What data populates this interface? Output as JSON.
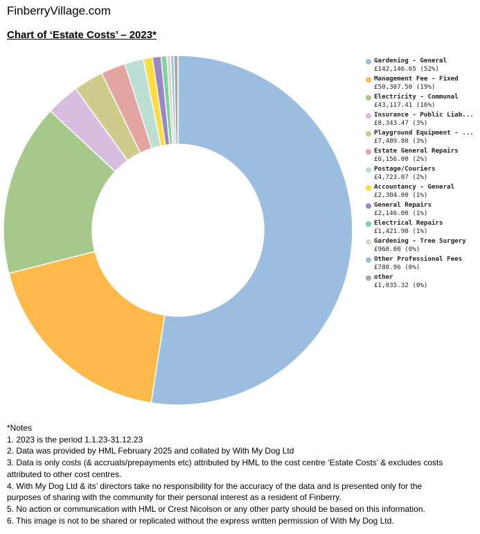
{
  "header": {
    "site": "FinberryVillage.com",
    "title": "Chart of ‘Estate Costs’ – 2023*"
  },
  "chart_data": {
    "type": "pie",
    "title": "Chart of ‘Estate Costs’ – 2023*",
    "donut": true,
    "legend_position": "right",
    "categories": [
      "Gardening - General",
      "Management Fee - Fixed",
      "Electricity - Communal",
      "Insurance - Public Liab...",
      "Playground Equipment - ...",
      "Estate General Repairs",
      "Postage/Couriers",
      "Accountancy - General",
      "General Repairs",
      "Electrical Repairs",
      "Gardening - Tree Surgery",
      "Other Professional Fees",
      "other"
    ],
    "values": [
      142146.65,
      50307.5,
      43117.41,
      8343.47,
      7489.8,
      6156.0,
      4723.07,
      2304.0,
      2146.0,
      1421.98,
      960.0,
      788.96,
      1035.32
    ],
    "value_labels": [
      "£142,146.65 (52%)",
      "£50,307.50 (19%)",
      "£43,117.41 (16%)",
      "£8,343.47 (3%)",
      "£7,489.80 (3%)",
      "£6,156.00 (2%)",
      "£4,723.07 (2%)",
      "£2,304.00 (1%)",
      "£2,146.00 (1%)",
      "£1,421.98 (1%)",
      "£960.00 (0%)",
      "£788.96 (0%)",
      "£1,035.32 (0%)"
    ],
    "colors": [
      "#9bbde0",
      "#fdb94a",
      "#a5c98a",
      "#d8bde0",
      "#cfcb8c",
      "#e3a5a0",
      "#bddfd3",
      "#fddc3e",
      "#9b86c6",
      "#7ed29b",
      "#dcd8c8",
      "#9bbde0",
      "#a8a8a8"
    ]
  },
  "notes": [
    "*Notes",
    "1. 2023 is the period 1.1.23-31.12.23",
    "2. Data was provided by HML February 2025 and collated by With My Dog Ltd",
    "3. Data is only costs (& accruals/prepayments etc) attributed by HML to the cost centre ‘Estate Costs’ & excludes costs",
    "attributed to other cost centres.",
    "4. With My Dog Ltd & its’ directors take no responsibility for the accuracy of the data and is presented only for the",
    "purposes of sharing with the community for their personal interest as a resident of Finberry.",
    "5. No action or communication with HML or Crest Nicolson or any other party should be based on this information.",
    "6. This image is not to be shared or replicated without the express written permission of With My Dog Ltd."
  ]
}
